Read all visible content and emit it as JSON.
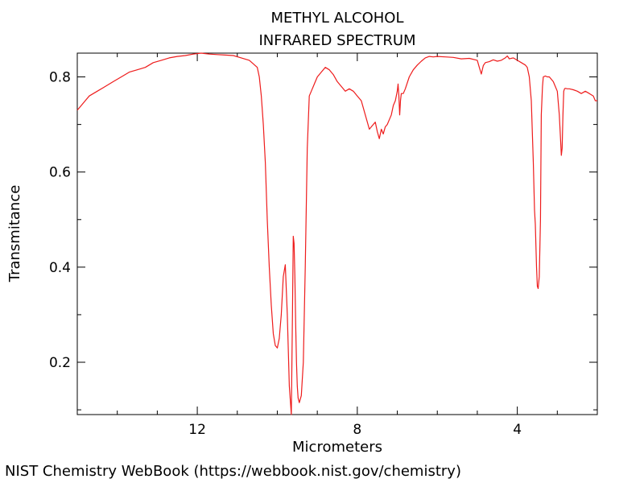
{
  "chart_data": {
    "type": "line",
    "title": "METHYL ALCOHOL",
    "subtitle": "INFRARED SPECTRUM",
    "xlabel": "Micrometers",
    "ylabel": "Transmitance",
    "x_reversed": true,
    "xlim": [
      15,
      2
    ],
    "ylim": [
      0.09,
      0.85
    ],
    "x_ticks": [
      12,
      8,
      4
    ],
    "x_minor_ticks": [
      14,
      13,
      11,
      10,
      9,
      7,
      6,
      5,
      3
    ],
    "y_ticks": [
      0.2,
      0.4,
      0.6,
      0.8
    ],
    "y_minor_ticks": [
      0.1,
      0.3,
      0.5,
      0.7
    ],
    "grid": false,
    "series": [
      {
        "color": "#ee1c1c",
        "x": [
          15.0,
          14.9,
          14.8,
          14.7,
          14.5,
          14.3,
          14.1,
          13.9,
          13.7,
          13.5,
          13.3,
          13.1,
          12.9,
          12.7,
          12.5,
          12.3,
          12.1,
          11.9,
          11.7,
          11.5,
          11.3,
          11.1,
          10.9,
          10.7,
          10.5,
          10.45,
          10.4,
          10.35,
          10.3,
          10.25,
          10.2,
          10.15,
          10.1,
          10.05,
          10.0,
          9.95,
          9.9,
          9.85,
          9.8,
          9.75,
          9.7,
          9.65,
          9.62,
          9.6,
          9.58,
          9.56,
          9.54,
          9.52,
          9.5,
          9.48,
          9.45,
          9.4,
          9.35,
          9.3,
          9.25,
          9.2,
          9.15,
          9.1,
          9.05,
          9.0,
          8.9,
          8.8,
          8.7,
          8.6,
          8.5,
          8.4,
          8.3,
          8.2,
          8.1,
          8.0,
          7.9,
          7.8,
          7.7,
          7.6,
          7.55,
          7.5,
          7.45,
          7.4,
          7.35,
          7.3,
          7.25,
          7.2,
          7.15,
          7.1,
          7.05,
          7.0,
          6.98,
          6.96,
          6.94,
          6.92,
          6.9,
          6.85,
          6.8,
          6.7,
          6.6,
          6.5,
          6.4,
          6.3,
          6.2,
          6.1,
          6.0,
          5.8,
          5.6,
          5.4,
          5.2,
          5.0,
          4.95,
          4.9,
          4.85,
          4.8,
          4.7,
          4.6,
          4.5,
          4.4,
          4.3,
          4.25,
          4.2,
          4.1,
          4.0,
          3.9,
          3.8,
          3.75,
          3.7,
          3.65,
          3.6,
          3.57,
          3.55,
          3.52,
          3.5,
          3.48,
          3.45,
          3.42,
          3.4,
          3.37,
          3.35,
          3.3,
          3.25,
          3.2,
          3.15,
          3.1,
          3.05,
          3.0,
          2.95,
          2.92,
          2.9,
          2.88,
          2.86,
          2.84,
          2.82,
          2.8,
          2.75,
          2.7,
          2.6,
          2.5,
          2.4,
          2.3,
          2.2,
          2.1,
          2.05,
          2.0
        ],
        "y": [
          0.73,
          0.74,
          0.75,
          0.76,
          0.77,
          0.78,
          0.79,
          0.8,
          0.81,
          0.815,
          0.82,
          0.83,
          0.835,
          0.84,
          0.843,
          0.845,
          0.848,
          0.85,
          0.848,
          0.847,
          0.846,
          0.845,
          0.84,
          0.835,
          0.82,
          0.8,
          0.76,
          0.7,
          0.62,
          0.5,
          0.4,
          0.32,
          0.26,
          0.235,
          0.23,
          0.25,
          0.3,
          0.38,
          0.405,
          0.3,
          0.15,
          0.09,
          0.3,
          0.465,
          0.45,
          0.38,
          0.28,
          0.2,
          0.15,
          0.125,
          0.115,
          0.13,
          0.2,
          0.4,
          0.65,
          0.76,
          0.77,
          0.78,
          0.79,
          0.8,
          0.81,
          0.82,
          0.815,
          0.805,
          0.79,
          0.78,
          0.77,
          0.775,
          0.77,
          0.76,
          0.75,
          0.72,
          0.69,
          0.7,
          0.705,
          0.685,
          0.67,
          0.69,
          0.68,
          0.695,
          0.7,
          0.71,
          0.72,
          0.74,
          0.75,
          0.77,
          0.785,
          0.76,
          0.72,
          0.75,
          0.765,
          0.765,
          0.775,
          0.8,
          0.815,
          0.825,
          0.833,
          0.84,
          0.843,
          0.842,
          0.843,
          0.842,
          0.841,
          0.838,
          0.839,
          0.835,
          0.82,
          0.806,
          0.824,
          0.83,
          0.832,
          0.836,
          0.833,
          0.835,
          0.84,
          0.844,
          0.838,
          0.84,
          0.835,
          0.83,
          0.825,
          0.82,
          0.8,
          0.75,
          0.62,
          0.52,
          0.49,
          0.4,
          0.36,
          0.355,
          0.38,
          0.5,
          0.72,
          0.78,
          0.8,
          0.802,
          0.8,
          0.8,
          0.795,
          0.79,
          0.78,
          0.77,
          0.72,
          0.67,
          0.635,
          0.65,
          0.72,
          0.77,
          0.775,
          0.776,
          0.775,
          0.775,
          0.773,
          0.77,
          0.765,
          0.77,
          0.765,
          0.76,
          0.75,
          0.75
        ]
      }
    ]
  },
  "credit": "NIST Chemistry WebBook (https://webbook.nist.gov/chemistry)"
}
